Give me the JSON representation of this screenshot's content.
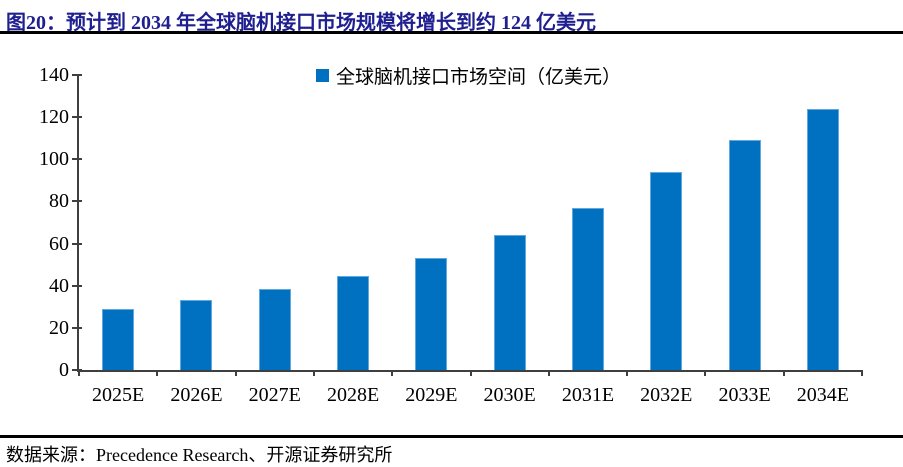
{
  "title": "图20：预计到 2034 年全球脑机接口市场规模将增长到约 124 亿美元",
  "source": "数据来源：Precedence Research、开源证券研究所",
  "colors": {
    "title_navy": "#1f1f8f",
    "bar_fill": "#0070c0",
    "bar_edge": "#64a8db",
    "axis": "#3f3f3f",
    "rule": "#000000"
  },
  "chart_data": {
    "type": "bar",
    "title": "",
    "legend": "全球脑机接口市场空间（亿美元）",
    "legend_position": "top-center",
    "categories": [
      "2025E",
      "2026E",
      "2027E",
      "2028E",
      "2029E",
      "2030E",
      "2031E",
      "2032E",
      "2033E",
      "2034E"
    ],
    "values": [
      29,
      33,
      38.5,
      44.5,
      53,
      64,
      77,
      94,
      109,
      124
    ],
    "xlabel": "",
    "ylabel": "",
    "ylim": [
      0,
      140
    ],
    "ytick_step": 20,
    "grid": false
  }
}
